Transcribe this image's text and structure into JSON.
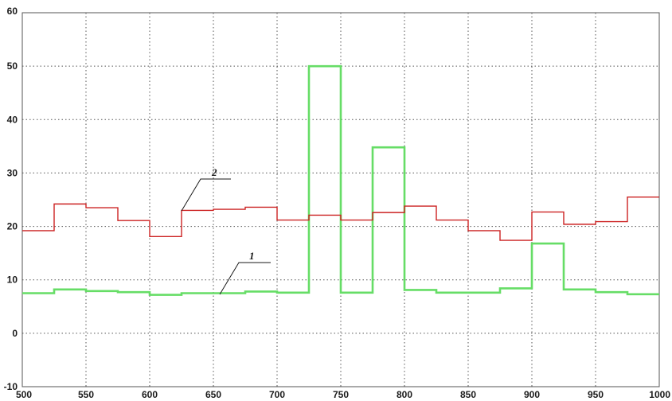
{
  "chart_data": {
    "type": "line",
    "title": "",
    "xlabel": "",
    "ylabel": "",
    "xlim": [
      500,
      1000
    ],
    "ylim": [
      -10,
      60
    ],
    "xticks": [
      "500",
      "550",
      "600",
      "650",
      "700",
      "750",
      "800",
      "850",
      "900",
      "950",
      "1000"
    ],
    "yticks": [
      "-10",
      "0",
      "10",
      "20",
      "30",
      "40",
      "50",
      "60"
    ],
    "grid": true,
    "step": true,
    "series": [
      {
        "key": "s1",
        "color": "#66dd66",
        "x": [
          500,
          525,
          550,
          575,
          600,
          625,
          650,
          675,
          700,
          725,
          750,
          775,
          800,
          825,
          850,
          875,
          900,
          925,
          950,
          975,
          1000
        ],
        "y": [
          7.5,
          8.2,
          7.9,
          7.7,
          7.2,
          7.5,
          7.5,
          7.8,
          7.6,
          50.0,
          7.6,
          34.8,
          8.1,
          7.6,
          7.6,
          8.4,
          16.8,
          8.2,
          7.7,
          7.3,
          7.3
        ]
      },
      {
        "key": "s2",
        "color": "#cc2222",
        "x": [
          500,
          525,
          550,
          575,
          600,
          625,
          650,
          675,
          700,
          725,
          750,
          775,
          800,
          825,
          850,
          875,
          900,
          925,
          950,
          975,
          1000
        ],
        "y": [
          19.2,
          24.2,
          23.5,
          21.1,
          18.1,
          23.0,
          23.2,
          23.6,
          21.2,
          22.1,
          21.2,
          22.6,
          23.8,
          21.2,
          19.2,
          17.4,
          22.7,
          20.4,
          20.9,
          25.5,
          25.5
        ]
      }
    ],
    "annotations": [
      {
        "label": "1",
        "x": 700,
        "y": 13
      },
      {
        "label": "2",
        "x": 660,
        "y": 29
      }
    ]
  }
}
